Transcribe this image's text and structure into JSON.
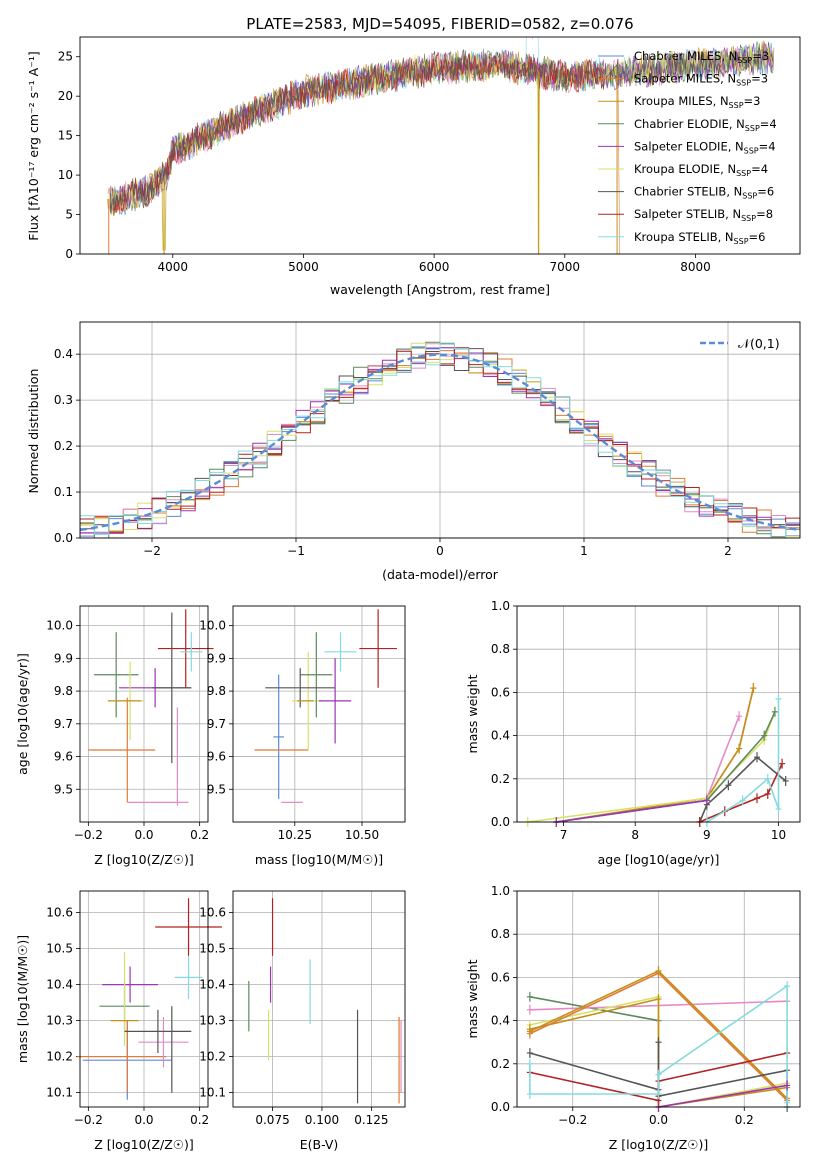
{
  "figure_title": "PLATE=2583, MJD=54095, FIBERID=0582, z=0.076",
  "colors": [
    "#5b8bd8",
    "#e07b39",
    "#e58ac6",
    "#c4901a",
    "#5e8a5e",
    "#9b35b3",
    "#d8e06a",
    "#555555",
    "#b22222",
    "#83dbe0"
  ],
  "chart_data": [
    {
      "id": "spectrum",
      "type": "line",
      "title": "PLATE=2583, MJD=54095, FIBERID=0582, z=0.076",
      "xlabel": "wavelength [Angstrom, rest frame]",
      "ylabel": "Flux [fλ10⁻¹⁷ erg cm⁻² s⁻¹ A⁻¹]",
      "xlim": [
        3290,
        8800
      ],
      "ylim": [
        0,
        27.5
      ],
      "xticks": [
        4000,
        5000,
        6000,
        7000,
        8000
      ],
      "yticks": [
        0,
        5,
        10,
        15,
        20,
        25
      ],
      "legend_position": "right",
      "x_range_of_data": [
        3500,
        8600
      ],
      "continuum": {
        "x": [
          3500,
          3800,
          3950,
          4000,
          4500,
          5000,
          5500,
          6000,
          6500,
          7000,
          7500,
          8000,
          8600
        ],
        "y": [
          6.5,
          8,
          10,
          13,
          17,
          20.5,
          22,
          23.5,
          24,
          22.5,
          23,
          24,
          25
        ]
      },
      "absorption_features": [
        {
          "x": 3933,
          "depth_to": 0
        },
        {
          "x": 6800,
          "depth_to": 0
        },
        {
          "x": 7400,
          "depth_to": 0
        }
      ],
      "series": [
        {
          "name": "Chabrier MILES, N_SSP=3",
          "label_main": "Chabrier MILES, N",
          "label_sub": "SSP",
          "label_tail": "=3"
        },
        {
          "name": "Salpeter MILES, N_SSP=3",
          "label_main": "Salpeter MILES, N",
          "label_sub": "SSP",
          "label_tail": "=3"
        },
        {
          "name": "Kroupa MILES, N_SSP=3",
          "label_main": "Kroupa MILES, N",
          "label_sub": "SSP",
          "label_tail": "=3"
        },
        {
          "name": "Chabrier ELODIE, N_SSP=4",
          "label_main": "Chabrier ELODIE, N",
          "label_sub": "SSP",
          "label_tail": "=4"
        },
        {
          "name": "Salpeter ELODIE, N_SSP=4",
          "label_main": "Salpeter ELODIE, N",
          "label_sub": "SSP",
          "label_tail": "=4"
        },
        {
          "name": "Kroupa ELODIE, N_SSP=4",
          "label_main": "Kroupa ELODIE, N",
          "label_sub": "SSP",
          "label_tail": "=4"
        },
        {
          "name": "Chabrier STELIB, N_SSP=6",
          "label_main": "Chabrier STELIB, N",
          "label_sub": "SSP",
          "label_tail": "=6"
        },
        {
          "name": "Salpeter STELIB, N_SSP=8",
          "label_main": "Salpeter STELIB, N",
          "label_sub": "SSP",
          "label_tail": "=8"
        },
        {
          "name": "Kroupa STELIB, N_SSP=6",
          "label_main": "Kroupa STELIB, N",
          "label_sub": "SSP",
          "label_tail": "=6"
        }
      ]
    },
    {
      "id": "residuals",
      "type": "histogram",
      "xlabel": "(data-model)/error",
      "ylabel": "Normed distribution",
      "xlim": [
        -2.5,
        2.5
      ],
      "ylim": [
        0,
        0.47
      ],
      "xticks": [
        -2,
        -1,
        0,
        1,
        2
      ],
      "xtick_labels": [
        "−2",
        "−1",
        "0",
        "1",
        "2"
      ],
      "yticks": [
        0,
        0.1,
        0.2,
        0.3,
        0.4
      ],
      "ytick_labels": [
        "0.0",
        "0.1",
        "0.2",
        "0.3",
        "0.4"
      ],
      "grid": true,
      "bin_width": 0.1,
      "reference_curve": {
        "label": "𝒩(0,1)",
        "mean": 0,
        "sigma": 1,
        "color": "#5b8bd8",
        "dash": true
      },
      "legend_position": "top-right"
    },
    {
      "id": "age_vs_Z",
      "type": "errorbar",
      "xlabel": "Z [log10(Z/Z☉)]",
      "ylabel": "age  [log10(age/yr)]",
      "xlim": [
        -0.23,
        0.23
      ],
      "ylim": [
        9.4,
        10.06
      ],
      "xticks": [
        -0.2,
        0,
        0.2
      ],
      "xtick_labels": [
        "−0.2",
        "0.0",
        "0.2"
      ],
      "yticks": [
        9.5,
        9.6,
        9.7,
        9.8,
        9.9,
        10.0
      ],
      "ytick_labels": [
        "9.5",
        "9.6",
        "9.7",
        "9.8",
        "9.9",
        "10.0"
      ],
      "points": [
        {
          "x": -0.08,
          "xerr": 0.12,
          "y": 9.62,
          "yerr": 0.0,
          "c": 1
        },
        {
          "x": -0.06,
          "xerr": 0.005,
          "y": 9.62,
          "yerr": 0.16,
          "c": 1
        },
        {
          "x": 0.05,
          "xerr": 0.11,
          "y": 9.46,
          "yerr": 0.0,
          "c": 2
        },
        {
          "x": 0.12,
          "xerr": 0.0,
          "y": 9.6,
          "yerr": 0.15,
          "c": 2
        },
        {
          "x": -0.1,
          "xerr": 0.08,
          "y": 9.85,
          "yerr": 0.13,
          "c": 4
        },
        {
          "x": 0.04,
          "xerr": 0.13,
          "y": 9.81,
          "yerr": 0.06,
          "c": 5
        },
        {
          "x": 0.1,
          "xerr": 0.07,
          "y": 9.81,
          "yerr": 0.23,
          "c": 7
        },
        {
          "x": 0.15,
          "xerr": 0.1,
          "y": 9.93,
          "yerr": 0.12,
          "c": 8
        },
        {
          "x": 0.17,
          "xerr": 0.04,
          "y": 9.92,
          "yerr": 0.06,
          "c": 9
        },
        {
          "x": -0.05,
          "xerr": 0.05,
          "y": 9.77,
          "yerr": 0.12,
          "c": 6
        },
        {
          "x": -0.07,
          "xerr": 0.06,
          "y": 9.77,
          "yerr": 0.0,
          "c": 3
        }
      ]
    },
    {
      "id": "age_vs_mass",
      "type": "errorbar",
      "xlabel": "mass [log10(M/M☉)]",
      "ylabel": "",
      "xlim": [
        10.02,
        10.66
      ],
      "ylim": [
        9.4,
        10.06
      ],
      "xticks": [
        10.25,
        10.5
      ],
      "xtick_labels": [
        "10.25",
        "10.50"
      ],
      "yticks": [
        9.5,
        9.6,
        9.7,
        9.8,
        9.9,
        10.0
      ],
      "ytick_labels": [
        "9.5",
        "9.6",
        "9.7",
        "9.8",
        "9.9",
        "10.0"
      ],
      "points": [
        {
          "x": 10.19,
          "xerr": 0.02,
          "y": 9.66,
          "yerr": 0.19,
          "c": 0
        },
        {
          "x": 10.2,
          "xerr": 0.1,
          "y": 9.62,
          "yerr": 0.0,
          "c": 1
        },
        {
          "x": 10.24,
          "xerr": 0.04,
          "y": 9.46,
          "yerr": 0.0,
          "c": 2
        },
        {
          "x": 10.3,
          "xerr": 0.06,
          "y": 9.77,
          "yerr": 0.15,
          "c": 6
        },
        {
          "x": 10.33,
          "xerr": 0.06,
          "y": 9.85,
          "yerr": 0.13,
          "c": 4
        },
        {
          "x": 10.27,
          "xerr": 0.13,
          "y": 9.81,
          "yerr": 0.06,
          "c": 7
        },
        {
          "x": 10.4,
          "xerr": 0.06,
          "y": 9.77,
          "yerr": 0.13,
          "c": 5
        },
        {
          "x": 10.42,
          "xerr": 0.06,
          "y": 9.92,
          "yerr": 0.06,
          "c": 9
        },
        {
          "x": 10.56,
          "xerr": 0.07,
          "y": 9.93,
          "yerr": 0.12,
          "c": 8
        },
        {
          "x": 10.29,
          "xerr": 0.03,
          "y": 9.77,
          "yerr": 0.0,
          "c": 3
        }
      ]
    },
    {
      "id": "weight_vs_age",
      "type": "line",
      "xlabel": "age  [log10(age/yr)]",
      "ylabel": "mass weight",
      "xlim": [
        6.35,
        10.3
      ],
      "ylim": [
        0,
        1.0
      ],
      "xticks": [
        7,
        8,
        9,
        10
      ],
      "xtick_labels": [
        "7",
        "8",
        "9",
        "10"
      ],
      "yticks": [
        0,
        0.2,
        0.4,
        0.6,
        0.8,
        1.0
      ],
      "ytick_labels": [
        "0.0",
        "0.2",
        "0.4",
        "0.6",
        "0.8",
        "1.0"
      ],
      "series": [
        {
          "c": 1,
          "x": [
            6.9,
            9.0,
            9.45,
            9.65
          ],
          "y": [
            0.0,
            0.11,
            0.34,
            0.62
          ]
        },
        {
          "c": 3,
          "x": [
            6.9,
            9.0,
            9.45,
            9.65
          ],
          "y": [
            0.0,
            0.11,
            0.34,
            0.62
          ]
        },
        {
          "c": 2,
          "x": [
            9.0,
            9.45
          ],
          "y": [
            0.11,
            0.49
          ]
        },
        {
          "c": 6,
          "x": [
            6.5,
            9.0,
            9.8,
            9.95
          ],
          "y": [
            0.0,
            0.11,
            0.38,
            0.51
          ]
        },
        {
          "c": 4,
          "x": [
            6.9,
            9.0,
            9.8,
            9.95
          ],
          "y": [
            0.0,
            0.1,
            0.4,
            0.51
          ]
        },
        {
          "c": 7,
          "x": [
            8.9,
            9.0,
            9.3,
            9.7,
            10.1
          ],
          "y": [
            0.0,
            0.08,
            0.17,
            0.3,
            0.19
          ]
        },
        {
          "c": 8,
          "x": [
            8.9,
            9.25,
            9.7,
            9.85,
            10.05
          ],
          "y": [
            0.0,
            0.05,
            0.11,
            0.13,
            0.27
          ]
        },
        {
          "c": 9,
          "x": [
            9.0,
            9.5,
            9.85,
            10.0,
            10.0
          ],
          "y": [
            0.0,
            0.1,
            0.2,
            0.06,
            0.57
          ]
        },
        {
          "c": 5,
          "x": [
            6.9,
            9.0
          ],
          "y": [
            0.0,
            0.1
          ]
        }
      ]
    },
    {
      "id": "mass_vs_Z",
      "type": "errorbar",
      "xlabel": "Z [log10(Z/Z☉)]",
      "ylabel": "mass [log10(M/M☉)]",
      "xlim": [
        -0.23,
        0.23
      ],
      "ylim": [
        10.06,
        10.66
      ],
      "xticks": [
        -0.2,
        0,
        0.2
      ],
      "xtick_labels": [
        "−0.2",
        "0.0",
        "0.2"
      ],
      "yticks": [
        10.1,
        10.2,
        10.3,
        10.4,
        10.5,
        10.6
      ],
      "ytick_labels": [
        "10.1",
        "10.2",
        "10.3",
        "10.4",
        "10.5",
        "10.6"
      ],
      "points": [
        {
          "x": -0.06,
          "xerr": 0.16,
          "y": 10.19,
          "yerr": 0.11,
          "c": 0
        },
        {
          "x": -0.08,
          "xerr": 0.16,
          "y": 10.2,
          "yerr": 0.0,
          "c": 1
        },
        {
          "x": -0.06,
          "xerr": 0.0,
          "y": 10.2,
          "yerr": 0.1,
          "c": 1
        },
        {
          "x": 0.07,
          "xerr": 0.09,
          "y": 10.24,
          "yerr": 0.07,
          "c": 2
        },
        {
          "x": -0.07,
          "xerr": 0.09,
          "y": 10.34,
          "yerr": 0.07,
          "c": 4
        },
        {
          "x": -0.05,
          "xerr": 0.1,
          "y": 10.4,
          "yerr": 0.05,
          "c": 5
        },
        {
          "x": -0.07,
          "xerr": 0.0,
          "y": 10.36,
          "yerr": 0.13,
          "c": 6
        },
        {
          "x": 0.05,
          "xerr": 0.12,
          "y": 10.27,
          "yerr": 0.06,
          "c": 7
        },
        {
          "x": 0.1,
          "xerr": 0.0,
          "y": 10.22,
          "yerr": 0.12,
          "c": 7
        },
        {
          "x": 0.16,
          "xerr": 0.12,
          "y": 10.56,
          "yerr": 0.08,
          "c": 8
        },
        {
          "x": 0.16,
          "xerr": 0.05,
          "y": 10.42,
          "yerr": 0.06,
          "c": 9
        },
        {
          "x": -0.07,
          "xerr": 0.05,
          "y": 10.3,
          "yerr": 0.0,
          "c": 3
        }
      ]
    },
    {
      "id": "mass_vs_ebv",
      "type": "errorbar",
      "xlabel": "E(B-V)",
      "ylabel": "",
      "xlim": [
        0.055,
        0.142
      ],
      "ylim": [
        10.06,
        10.66
      ],
      "xticks": [
        0.075,
        0.1,
        0.125
      ],
      "xtick_labels": [
        "0.075",
        "0.100",
        "0.125"
      ],
      "yticks": [
        10.1,
        10.2,
        10.3,
        10.4,
        10.5,
        10.6
      ],
      "ytick_labels": [
        "10.1",
        "10.2",
        "10.3",
        "10.4",
        "10.5",
        "10.6"
      ],
      "points": [
        {
          "x": 0.063,
          "xerr": 0,
          "y": 10.34,
          "yerr": 0.07,
          "c": 4
        },
        {
          "x": 0.073,
          "xerr": 0,
          "y": 10.26,
          "yerr": 0.07,
          "c": 6
        },
        {
          "x": 0.074,
          "xerr": 0,
          "y": 10.4,
          "yerr": 0.05,
          "c": 5
        },
        {
          "x": 0.075,
          "xerr": 0,
          "y": 10.56,
          "yerr": 0.08,
          "c": 8
        },
        {
          "x": 0.094,
          "xerr": 0,
          "y": 10.38,
          "yerr": 0.09,
          "c": 9
        },
        {
          "x": 0.118,
          "xerr": 0,
          "y": 10.2,
          "yerr": 0.13,
          "c": 7
        },
        {
          "x": 0.139,
          "xerr": 0,
          "y": 10.19,
          "yerr": 0.12,
          "c": 1
        },
        {
          "x": 0.14,
          "xerr": 0,
          "y": 10.2,
          "yerr": 0.1,
          "c": 2
        }
      ]
    },
    {
      "id": "weight_vs_Z",
      "type": "line",
      "xlabel": "Z [log10(Z/Z☉)]",
      "ylabel": "mass weight",
      "xlim": [
        -0.33,
        0.33
      ],
      "ylim": [
        0,
        1.0
      ],
      "xticks": [
        -0.2,
        0,
        0.2
      ],
      "xtick_labels": [
        "−0.2",
        "0.0",
        "0.2"
      ],
      "yticks": [
        0,
        0.2,
        0.4,
        0.6,
        0.8,
        1.0
      ],
      "ytick_labels": [
        "0.0",
        "0.2",
        "0.4",
        "0.6",
        "0.8",
        "1.0"
      ],
      "series": [
        {
          "c": 4,
          "x": [
            -0.3,
            0.0,
            0.0
          ],
          "y": [
            0.51,
            0.4,
            0.0
          ]
        },
        {
          "c": 2,
          "x": [
            -0.3,
            0.3
          ],
          "y": [
            0.45,
            0.49
          ]
        },
        {
          "c": 6,
          "x": [
            -0.3,
            0.0,
            0.0,
            0.3
          ],
          "y": [
            0.38,
            0.51,
            0.0,
            0.11
          ]
        },
        {
          "c": 3,
          "x": [
            -0.3,
            0.0,
            0.0,
            0.3
          ],
          "y": [
            0.36,
            0.5,
            0.0,
            0.09
          ]
        },
        {
          "c": 1,
          "x": [
            -0.3,
            0.0,
            0.3
          ],
          "y": [
            0.34,
            0.62,
            0.03
          ]
        },
        {
          "c": 3,
          "x": [
            -0.3,
            0.0,
            0.3
          ],
          "y": [
            0.35,
            0.63,
            0.04
          ]
        },
        {
          "c": 7,
          "x": [
            -0.3,
            0.0,
            0.0,
            0.0,
            0.3,
            0.3
          ],
          "y": [
            0.25,
            0.08,
            0.3,
            0.05,
            0.17,
            0.0
          ]
        },
        {
          "c": 8,
          "x": [
            -0.3,
            0.0,
            0.0,
            0.3
          ],
          "y": [
            0.16,
            0.03,
            0.12,
            0.25
          ]
        },
        {
          "c": 9,
          "x": [
            -0.3,
            -0.3,
            0.0,
            0.0,
            0.3,
            0.3
          ],
          "y": [
            0.2,
            0.06,
            0.06,
            0.15,
            0.56,
            0.02
          ]
        },
        {
          "c": 5,
          "x": [
            0.0,
            0.3
          ],
          "y": [
            0.0,
            0.1
          ]
        }
      ]
    }
  ]
}
